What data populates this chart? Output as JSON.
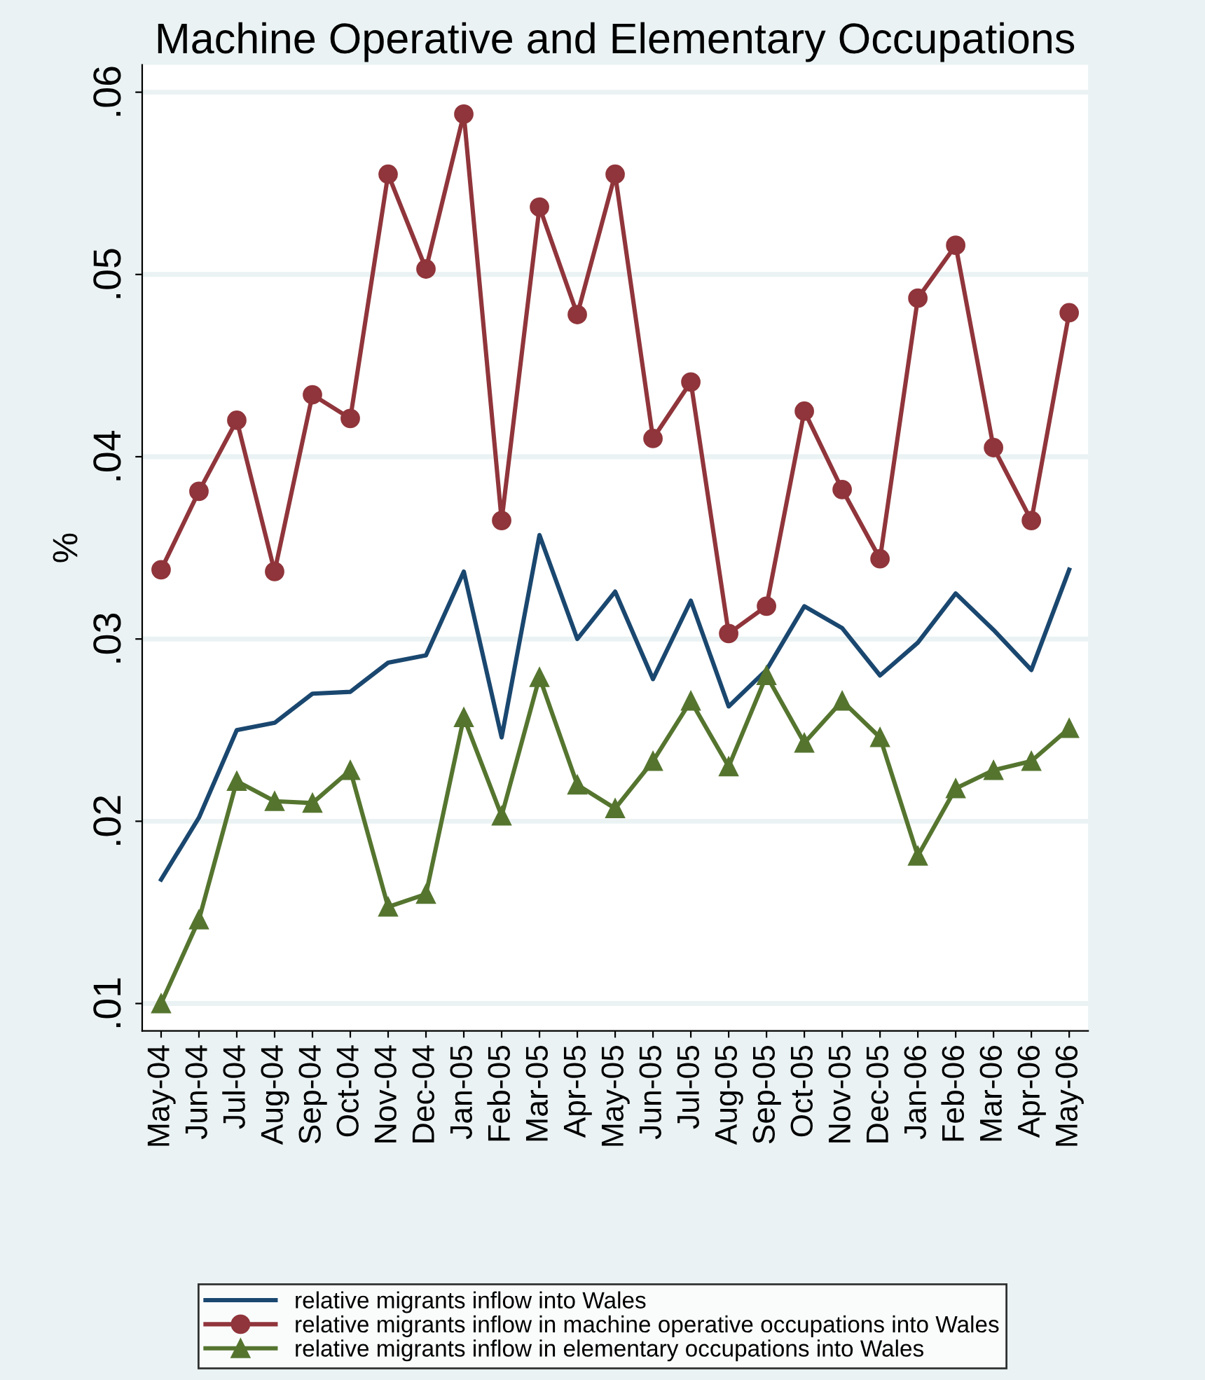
{
  "chart_data": {
    "type": "line",
    "title": "Machine Operative and Elementary Occupations",
    "ylabel": "%",
    "categories": [
      "May-04",
      "Jun-04",
      "Jul-04",
      "Aug-04",
      "Sep-04",
      "Oct-04",
      "Nov-04",
      "Dec-04",
      "Jan-05",
      "Feb-05",
      "Mar-05",
      "Apr-05",
      "May-05",
      "Jun-05",
      "Jul-05",
      "Aug-05",
      "Sep-05",
      "Oct-05",
      "Nov-05",
      "Dec-05",
      "Jan-06",
      "Feb-06",
      "Mar-06",
      "Apr-06",
      "May-06"
    ],
    "ylim": [
      0.0085,
      0.0615
    ],
    "yticks": [
      {
        "value": 0.01,
        "label": ".01"
      },
      {
        "value": 0.02,
        "label": ".02"
      },
      {
        "value": 0.03,
        "label": ".03"
      },
      {
        "value": 0.04,
        "label": ".04"
      },
      {
        "value": 0.05,
        "label": ".05"
      },
      {
        "value": 0.06,
        "label": ".06"
      }
    ],
    "grid": "y",
    "legend": "bottom",
    "series": [
      {
        "name": "relative migrants inflow into Wales",
        "color": "#1a476f",
        "marker": "none",
        "values": [
          0.0168,
          0.0202,
          0.025,
          0.0254,
          0.027,
          0.0271,
          0.0287,
          0.0291,
          0.0337,
          0.0246,
          0.0357,
          0.03,
          0.0326,
          0.0278,
          0.0321,
          0.0263,
          0.0283,
          0.0318,
          0.0306,
          0.028,
          0.0298,
          0.0325,
          0.0305,
          0.0283,
          0.0338
        ]
      },
      {
        "name": "relative migrants inflow in machine operative occupations into Wales",
        "color": "#90353b",
        "marker": "circle",
        "values": [
          0.0338,
          0.0381,
          0.042,
          0.0337,
          0.0434,
          0.0421,
          0.0555,
          0.0503,
          0.0588,
          0.0365,
          0.0537,
          0.0478,
          0.0555,
          0.041,
          0.0441,
          0.0303,
          0.0318,
          0.0425,
          0.0382,
          0.0344,
          0.0487,
          0.0516,
          0.0405,
          0.0365,
          0.0479
        ]
      },
      {
        "name": "relative migrants inflow in elementary occupations into Wales",
        "color": "#55752f",
        "marker": "triangle",
        "values": [
          0.01,
          0.0146,
          0.0222,
          0.0211,
          0.021,
          0.0228,
          0.0153,
          0.016,
          0.0257,
          0.0203,
          0.0279,
          0.022,
          0.0207,
          0.0233,
          0.0266,
          0.023,
          0.028,
          0.0243,
          0.0266,
          0.0246,
          0.0181,
          0.0218,
          0.0228,
          0.0233,
          0.0251
        ]
      }
    ]
  }
}
